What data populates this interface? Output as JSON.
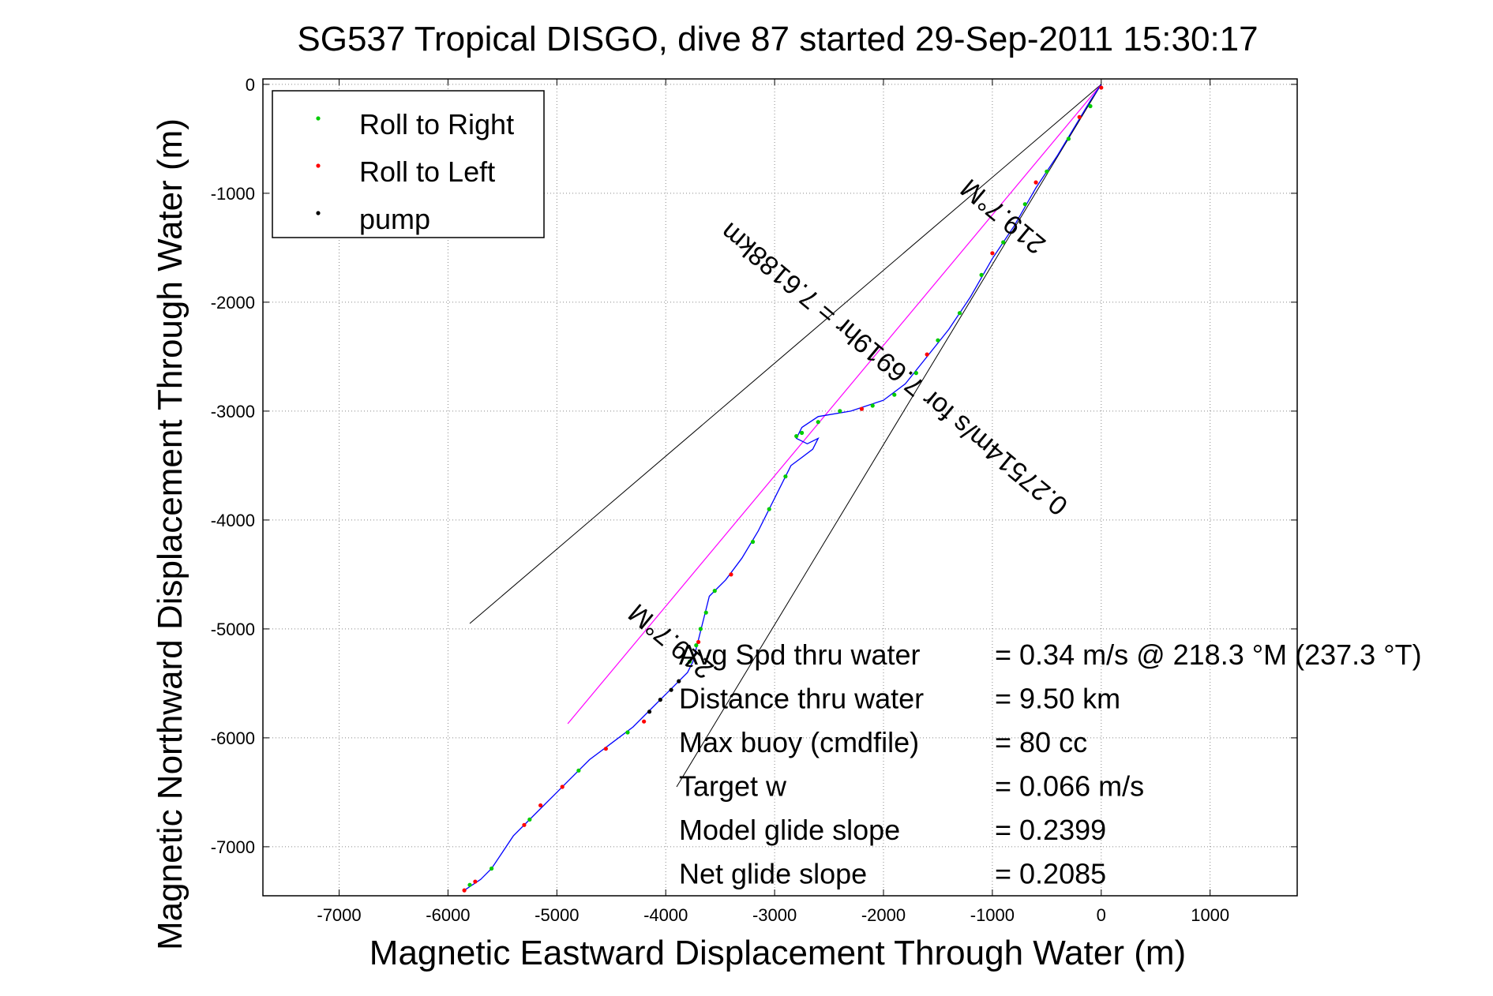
{
  "chart_data": {
    "type": "scatter",
    "title": "SG537 Tropical DISGO, dive 87 started 29-Sep-2011 15:30:17",
    "xlabel": "Magnetic Eastward Displacement Through Water (m)",
    "ylabel": "Magnetic Northward Displacement Through Water (m)",
    "xlim": [
      -7700,
      1800
    ],
    "ylim": [
      -7450,
      50
    ],
    "xticks": [
      -7000,
      -6000,
      -5000,
      -4000,
      -3000,
      -2000,
      -1000,
      0,
      1000
    ],
    "yticks": [
      0,
      -1000,
      -2000,
      -3000,
      -4000,
      -5000,
      -6000,
      -7000
    ],
    "grid": true,
    "legend_position": "top-left",
    "legend": [
      {
        "name": "Roll to Right",
        "color": "#00cc00"
      },
      {
        "name": "Roll to Left",
        "color": "#ff0000"
      },
      {
        "name": "pump",
        "color": "#000000"
      }
    ],
    "track": {
      "color": "#0000ff",
      "points": [
        [
          0,
          0
        ],
        [
          -100,
          -150
        ],
        [
          -250,
          -400
        ],
        [
          -400,
          -650
        ],
        [
          -600,
          -950
        ],
        [
          -800,
          -1300
        ],
        [
          -1000,
          -1600
        ],
        [
          -1200,
          -1950
        ],
        [
          -1400,
          -2250
        ],
        [
          -1600,
          -2500
        ],
        [
          -1800,
          -2750
        ],
        [
          -2000,
          -2900
        ],
        [
          -2300,
          -3000
        ],
        [
          -2600,
          -3050
        ],
        [
          -2750,
          -3150
        ],
        [
          -2800,
          -3250
        ],
        [
          -2700,
          -3300
        ],
        [
          -2600,
          -3250
        ],
        [
          -2650,
          -3350
        ],
        [
          -2850,
          -3500
        ],
        [
          -3000,
          -3800
        ],
        [
          -3150,
          -4100
        ],
        [
          -3300,
          -4350
        ],
        [
          -3450,
          -4550
        ],
        [
          -3600,
          -4700
        ],
        [
          -3650,
          -4900
        ],
        [
          -3700,
          -5100
        ],
        [
          -3750,
          -5300
        ],
        [
          -3800,
          -5400
        ],
        [
          -3950,
          -5550
        ],
        [
          -4100,
          -5700
        ],
        [
          -4300,
          -5900
        ],
        [
          -4500,
          -6050
        ],
        [
          -4700,
          -6200
        ],
        [
          -4900,
          -6400
        ],
        [
          -5000,
          -6500
        ],
        [
          -5200,
          -6700
        ],
        [
          -5400,
          -6900
        ],
        [
          -5600,
          -7200
        ],
        [
          -5700,
          -7300
        ],
        [
          -5850,
          -7400
        ]
      ]
    },
    "roll_right": [
      [
        -100,
        -200
      ],
      [
        -300,
        -500
      ],
      [
        -500,
        -800
      ],
      [
        -700,
        -1100
      ],
      [
        -900,
        -1450
      ],
      [
        -1100,
        -1750
      ],
      [
        -1300,
        -2100
      ],
      [
        -1500,
        -2350
      ],
      [
        -1700,
        -2650
      ],
      [
        -1900,
        -2850
      ],
      [
        -2100,
        -2950
      ],
      [
        -2400,
        -3000
      ],
      [
        -2600,
        -3100
      ],
      [
        -2750,
        -3200
      ],
      [
        -2800,
        -3230
      ],
      [
        -2900,
        -3600
      ],
      [
        -3050,
        -3900
      ],
      [
        -3200,
        -4200
      ],
      [
        -3550,
        -4650
      ],
      [
        -3630,
        -4850
      ],
      [
        -3680,
        -5000
      ],
      [
        -3720,
        -5150
      ],
      [
        -3780,
        -5300
      ],
      [
        -4350,
        -5950
      ],
      [
        -4800,
        -6300
      ],
      [
        -5250,
        -6750
      ],
      [
        -5600,
        -7200
      ],
      [
        -5800,
        -7350
      ]
    ],
    "roll_left": [
      [
        0,
        -30
      ],
      [
        -200,
        -300
      ],
      [
        -600,
        -900
      ],
      [
        -1000,
        -1550
      ],
      [
        -1600,
        -2480
      ],
      [
        -2200,
        -2980
      ],
      [
        -3400,
        -4500
      ],
      [
        -3700,
        -5120
      ],
      [
        -4200,
        -5850
      ],
      [
        -4550,
        -6100
      ],
      [
        -4950,
        -6450
      ],
      [
        -5150,
        -6620
      ],
      [
        -5300,
        -6800
      ],
      [
        -5750,
        -7320
      ],
      [
        -5850,
        -7400
      ]
    ],
    "pump": [
      [
        -3880,
        -5480
      ],
      [
        -3950,
        -5560
      ],
      [
        -4050,
        -5650
      ],
      [
        -4150,
        -5760
      ]
    ],
    "guide_lines": {
      "color": "#000000",
      "lines": [
        [
          [
            0,
            0
          ],
          [
            -5800,
            -4950
          ]
        ],
        [
          [
            0,
            0
          ],
          [
            -3900,
            -6450
          ]
        ]
      ]
    },
    "heading_line": {
      "color": "#ff00ff",
      "points": [
        [
          0,
          0
        ],
        [
          -4900,
          -5870
        ]
      ]
    },
    "rotated_annotations": [
      {
        "text": "219.7°M",
        "x": -850,
        "y": -1150,
        "angle": 219.7
      },
      {
        "text": "0.27514m/s for 7.6919hr = 7.6188km",
        "x": -1850,
        "y": -2550,
        "angle": 219.7
      },
      {
        "text": "219.7°M",
        "x": -3900,
        "y": -5050,
        "angle": 219.7
      }
    ],
    "stats": [
      {
        "label": "Avg Spd thru water",
        "value": "=  0.34 m/s @ 218.3 °M (237.3 °T)"
      },
      {
        "label": "Distance thru water",
        "value": "=  9.50 km"
      },
      {
        "label": "Max buoy (cmdfile)",
        "value": "= 80 cc"
      },
      {
        "label": "Target w",
        "value": "= 0.066 m/s"
      },
      {
        "label": "Model glide slope",
        "value": "= 0.2399"
      },
      {
        "label": "Net glide slope",
        "value": "= 0.2085"
      }
    ]
  }
}
